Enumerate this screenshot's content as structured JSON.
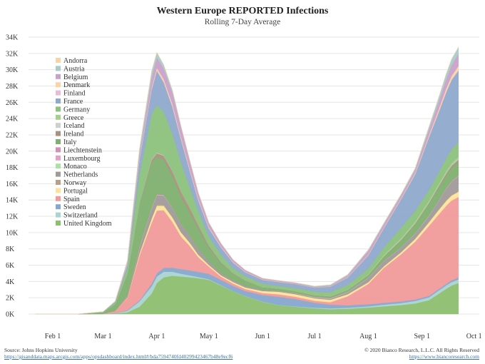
{
  "chart_data": {
    "type": "area",
    "stacked": true,
    "title": "Western Europe REPORTED Infections",
    "subtitle": "Rolling 7-Day Average",
    "ylim": [
      0,
      34000
    ],
    "y_ticks": [
      0,
      2000,
      4000,
      6000,
      8000,
      10000,
      12000,
      14000,
      16000,
      18000,
      20000,
      22000,
      24000,
      26000,
      28000,
      30000,
      32000,
      34000
    ],
    "y_tick_labels": [
      "0K",
      "2K",
      "4K",
      "6K",
      "8K",
      "10K",
      "12K",
      "14K",
      "16K",
      "18K",
      "20K",
      "22K",
      "24K",
      "26K",
      "28K",
      "30K",
      "32K",
      "34K"
    ],
    "x_tick_labels": [
      "Feb 1",
      "Mar 1",
      "Apr 1",
      "May 1",
      "Jun 1",
      "Jul 1",
      "Aug 1",
      "Sep 1",
      "Oct 1"
    ],
    "x_ticks": [
      "2020-02-01",
      "2020-03-01",
      "2020-04-01",
      "2020-05-01",
      "2020-06-01",
      "2020-07-01",
      "2020-08-01",
      "2020-09-01",
      "2020-10-01"
    ],
    "grid": true,
    "legend_position": "top-left",
    "x": [
      "2020-01-22",
      "2020-02-15",
      "2020-03-01",
      "2020-03-08",
      "2020-03-15",
      "2020-03-22",
      "2020-03-29",
      "2020-04-01",
      "2020-04-05",
      "2020-04-10",
      "2020-04-15",
      "2020-04-20",
      "2020-04-25",
      "2020-05-01",
      "2020-05-08",
      "2020-05-15",
      "2020-05-22",
      "2020-06-01",
      "2020-06-10",
      "2020-06-20",
      "2020-07-01",
      "2020-07-10",
      "2020-07-20",
      "2020-08-01",
      "2020-08-10",
      "2020-08-20",
      "2020-08-28",
      "2020-09-05",
      "2020-09-10",
      "2020-09-15",
      "2020-09-18",
      "2020-09-22"
    ],
    "series": [
      {
        "name": "United Kingdom",
        "color": "#8dbf6f",
        "values": [
          0,
          0,
          10,
          50,
          200,
          900,
          2500,
          3800,
          4500,
          4700,
          4600,
          4500,
          4400,
          4200,
          3500,
          2800,
          2200,
          1500,
          1100,
          900,
          700,
          600,
          650,
          800,
          950,
          1100,
          1300,
          1700,
          2400,
          3100,
          3500,
          3800
        ]
      },
      {
        "name": "Switzerland",
        "color": "#a9d4d0",
        "values": [
          0,
          0,
          5,
          40,
          200,
          650,
          900,
          800,
          700,
          500,
          350,
          250,
          150,
          80,
          50,
          30,
          25,
          30,
          30,
          40,
          80,
          100,
          120,
          150,
          200,
          250,
          300,
          350,
          400,
          420,
          430,
          450
        ]
      },
      {
        "name": "Sweden",
        "color": "#86a7cf",
        "values": [
          0,
          0,
          3,
          20,
          70,
          120,
          300,
          400,
          450,
          500,
          560,
          600,
          620,
          650,
          640,
          620,
          600,
          800,
          1000,
          900,
          600,
          450,
          300,
          250,
          230,
          200,
          180,
          170,
          180,
          190,
          200,
          220
        ]
      },
      {
        "name": "Spain",
        "color": "#f19a9b",
        "values": [
          0,
          0,
          10,
          200,
          1500,
          5500,
          7500,
          7700,
          7100,
          5600,
          4000,
          3000,
          1800,
          900,
          400,
          300,
          250,
          250,
          300,
          280,
          250,
          300,
          1100,
          2500,
          4300,
          5800,
          7100,
          8600,
          9100,
          9600,
          9800,
          9900
        ]
      },
      {
        "name": "Portugal",
        "color": "#fbe49a",
        "values": [
          0,
          0,
          0,
          5,
          50,
          250,
          500,
          600,
          550,
          550,
          500,
          400,
          300,
          200,
          180,
          190,
          200,
          250,
          320,
          320,
          310,
          300,
          250,
          200,
          180,
          250,
          350,
          450,
          550,
          600,
          620,
          650
        ]
      },
      {
        "name": "Norway",
        "color": "#b5a189",
        "values": [
          0,
          0,
          5,
          60,
          150,
          250,
          200,
          180,
          150,
          100,
          60,
          40,
          20,
          15,
          10,
          8,
          6,
          8,
          10,
          10,
          12,
          15,
          30,
          60,
          70,
          70,
          70,
          80,
          90,
          100,
          110,
          120
        ]
      },
      {
        "name": "Netherlands",
        "color": "#a09a9a",
        "values": [
          0,
          0,
          3,
          40,
          150,
          550,
          1050,
          1100,
          1100,
          1050,
          950,
          850,
          650,
          420,
          250,
          180,
          150,
          130,
          100,
          90,
          80,
          100,
          200,
          450,
          550,
          500,
          550,
          700,
          1000,
          1400,
          1600,
          1800
        ]
      },
      {
        "name": "Monaco",
        "color": "#aee0a6",
        "values": [
          0,
          0,
          0,
          0,
          1,
          3,
          3,
          2,
          1,
          1,
          0,
          0,
          0,
          0,
          0,
          0,
          0,
          0,
          0,
          0,
          0,
          0,
          0,
          1,
          2,
          2,
          2,
          3,
          3,
          3,
          3,
          3
        ]
      },
      {
        "name": "Luxembourg",
        "color": "#e0a3c4",
        "values": [
          0,
          0,
          0,
          5,
          30,
          100,
          120,
          110,
          80,
          40,
          20,
          10,
          8,
          5,
          3,
          4,
          6,
          10,
          15,
          40,
          80,
          100,
          70,
          50,
          40,
          40,
          50,
          60,
          60,
          60,
          60,
          60
        ]
      },
      {
        "name": "Liechtenstein",
        "color": "#d48fb8",
        "values": [
          0,
          0,
          0,
          0,
          1,
          3,
          3,
          2,
          1,
          1,
          0,
          0,
          0,
          0,
          0,
          0,
          0,
          0,
          0,
          0,
          0,
          0,
          0,
          0,
          1,
          1,
          1,
          2,
          2,
          2,
          2,
          2
        ]
      },
      {
        "name": "Italy",
        "color": "#7fb06f",
        "values": [
          0,
          0,
          200,
          800,
          2500,
          5100,
          5500,
          4600,
          4300,
          3900,
          3300,
          2800,
          2500,
          1700,
          1200,
          800,
          650,
          300,
          250,
          230,
          200,
          200,
          220,
          300,
          500,
          800,
          1100,
          1400,
          1500,
          1550,
          1600,
          1650
        ]
      },
      {
        "name": "Ireland",
        "color": "#a99181",
        "values": [
          0,
          0,
          0,
          10,
          80,
          200,
          350,
          450,
          500,
          600,
          700,
          600,
          450,
          250,
          150,
          80,
          50,
          20,
          15,
          15,
          15,
          15,
          30,
          50,
          80,
          110,
          120,
          150,
          200,
          250,
          280,
          300
        ]
      },
      {
        "name": "Iceland",
        "color": "#cfcfcf",
        "values": [
          0,
          0,
          0,
          5,
          20,
          40,
          50,
          40,
          30,
          15,
          5,
          2,
          1,
          1,
          0,
          0,
          0,
          0,
          1,
          2,
          3,
          5,
          8,
          10,
          10,
          10,
          10,
          15,
          25,
          40,
          60,
          70
        ]
      },
      {
        "name": "Greece",
        "color": "#a5cf8f",
        "values": [
          0,
          0,
          1,
          10,
          30,
          60,
          70,
          65,
          60,
          50,
          40,
          20,
          15,
          10,
          8,
          6,
          5,
          5,
          5,
          10,
          15,
          30,
          40,
          80,
          150,
          200,
          230,
          250,
          250,
          260,
          260,
          260
        ]
      },
      {
        "name": "Germany",
        "color": "#8cc27c",
        "values": [
          0,
          0,
          20,
          150,
          600,
          3500,
          5500,
          5800,
          5300,
          4500,
          3500,
          2500,
          1700,
          1100,
          900,
          600,
          500,
          400,
          300,
          350,
          400,
          450,
          550,
          700,
          900,
          1300,
          1300,
          1300,
          1400,
          1600,
          1700,
          1800
        ]
      },
      {
        "name": "France",
        "color": "#8fa9cb",
        "values": [
          0,
          0,
          20,
          120,
          500,
          1800,
          3000,
          4200,
          3600,
          3300,
          2800,
          2000,
          1300,
          1000,
          900,
          700,
          500,
          500,
          500,
          500,
          500,
          700,
          900,
          1600,
          2400,
          3500,
          4500,
          6500,
          7300,
          8100,
          8500,
          8800
        ]
      },
      {
        "name": "Finland",
        "color": "#e8bcd6",
        "values": [
          0,
          0,
          0,
          3,
          20,
          60,
          100,
          110,
          130,
          120,
          100,
          80,
          60,
          40,
          30,
          20,
          15,
          10,
          10,
          8,
          8,
          10,
          15,
          20,
          20,
          25,
          30,
          40,
          50,
          60,
          60,
          70
        ]
      },
      {
        "name": "Denmark",
        "color": "#fcd3a6",
        "values": [
          0,
          0,
          2,
          20,
          100,
          120,
          200,
          250,
          280,
          250,
          200,
          160,
          140,
          120,
          90,
          70,
          50,
          40,
          30,
          20,
          15,
          20,
          40,
          60,
          80,
          100,
          120,
          200,
          300,
          400,
          450,
          500
        ]
      },
      {
        "name": "Belgium",
        "color": "#c9a1c9",
        "values": [
          0,
          0,
          3,
          30,
          150,
          500,
          1200,
          1300,
          1300,
          1400,
          1200,
          1000,
          700,
          500,
          350,
          250,
          180,
          120,
          100,
          90,
          80,
          100,
          200,
          500,
          400,
          350,
          400,
          700,
          900,
          1100,
          1300,
          1500
        ]
      },
      {
        "name": "Austria",
        "color": "#a9ccc9",
        "values": [
          0,
          0,
          3,
          30,
          200,
          600,
          750,
          600,
          450,
          300,
          150,
          80,
          60,
          50,
          40,
          30,
          30,
          30,
          40,
          50,
          80,
          100,
          110,
          120,
          120,
          150,
          200,
          350,
          500,
          700,
          750,
          800
        ]
      },
      {
        "name": "Andorra",
        "color": "#fad3a9",
        "values": [
          0,
          0,
          0,
          1,
          10,
          25,
          40,
          40,
          35,
          25,
          15,
          10,
          5,
          2,
          1,
          0,
          0,
          0,
          0,
          0,
          1,
          2,
          2,
          3,
          5,
          8,
          10,
          12,
          15,
          25,
          30,
          35
        ]
      }
    ],
    "legend": [
      "Andorra",
      "Austria",
      "Belgium",
      "Denmark",
      "Finland",
      "France",
      "Germany",
      "Greece",
      "Iceland",
      "Ireland",
      "Italy",
      "Liechtenstein",
      "Luxembourg",
      "Monaco",
      "Netherlands",
      "Norway",
      "Portugal",
      "Spain",
      "Sweden",
      "Switzerland",
      "United Kingdom"
    ]
  },
  "footer": {
    "source": "Source: Johns Hopkins University",
    "source_url": "https://gisanddata.maps.arcgis.com/apps/opsdashboard/index.html#/bda7594740fd40299423467b48e9ecf6",
    "copyright": "© 2020 Bianco Research, L.L.C. All Rights Reserved",
    "website": "https://www.biancoresearch.com"
  }
}
